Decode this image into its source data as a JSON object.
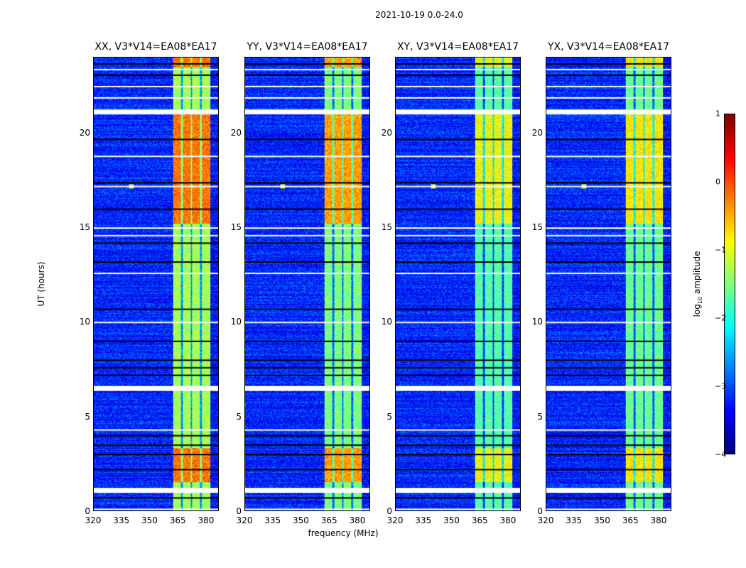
{
  "suptitle": "2021-10-19 0.0-24.0",
  "xlabel": "frequency (MHz)",
  "ylabel": "UT (hours)",
  "colorbar": {
    "label_prefix": "log",
    "label_sub": "10",
    "label_suffix": " amplitude",
    "range": [
      -4,
      1
    ],
    "ticks": [
      "1",
      "0",
      "−1",
      "−2",
      "−3",
      "−4"
    ],
    "tick_values": [
      1,
      0,
      -1,
      -2,
      -3,
      -4
    ],
    "colormap": "jet"
  },
  "chart_data": {
    "type": "heatmap",
    "xlim": [
      320,
      386.8
    ],
    "ylim": [
      0,
      24
    ],
    "x_ticks": [
      "320",
      "335",
      "350",
      "365",
      "380"
    ],
    "x_tick_values": [
      320,
      335,
      350,
      365,
      380
    ],
    "y_ticks": [
      "0",
      "5",
      "10",
      "15",
      "20"
    ],
    "y_tick_values": [
      0,
      5,
      10,
      15,
      20
    ],
    "bright_band_mhz": [
      362.3,
      382.6
    ],
    "subband_gaps_mhz": [
      367.2,
      372.3,
      377.4
    ],
    "flagged_hours": [
      0.1,
      1.2,
      4.3,
      6.6,
      10.0,
      12.6,
      14.6,
      15.0,
      17.2,
      18.8,
      21.25,
      21.9,
      22.5,
      23.4
    ],
    "dark_hours": [
      0.7,
      2.2,
      3.0,
      3.5,
      4.0,
      7.2,
      7.6,
      8.0,
      9.0,
      10.7,
      13.2,
      14.2,
      16.0,
      17.4,
      19.7,
      23.1,
      23.7
    ],
    "rfi_spike": {
      "hour": 17.2,
      "mhz": 340
    },
    "panels": [
      {
        "title": "XX, V3*V14=EA08*EA17",
        "band_level": -1.3,
        "active_level": -0.2
      },
      {
        "title": "YY, V3*V14=EA08*EA17",
        "band_level": -1.5,
        "active_level": -0.4
      },
      {
        "title": "XY, V3*V14=EA08*EA17",
        "band_level": -1.7,
        "active_level": -0.9
      },
      {
        "title": "YX, V3*V14=EA08*EA17",
        "band_level": -1.6,
        "active_level": -0.8
      }
    ]
  }
}
